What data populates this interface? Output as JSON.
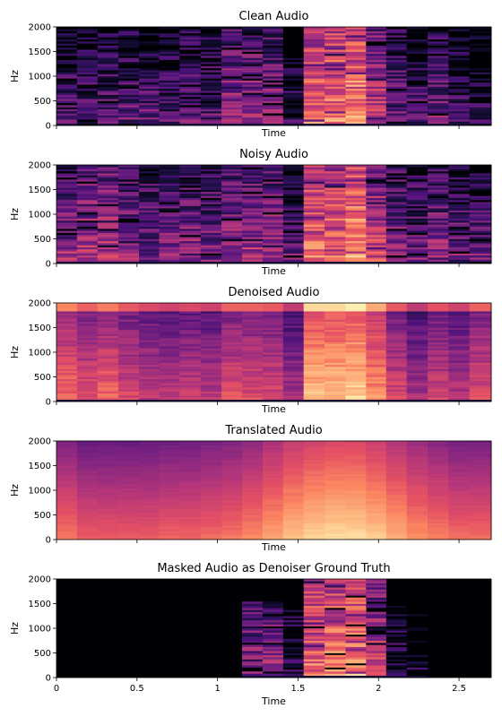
{
  "chart_data": [
    {
      "type": "heatmap",
      "title": "Clean Audio",
      "xlabel": "Time",
      "ylabel": "Hz",
      "xlim": [
        0,
        2.7
      ],
      "ylim": [
        0,
        2000
      ],
      "x_ticks": [
        0,
        0.5,
        1,
        1.5,
        2,
        2.5
      ],
      "x_tick_labels_shown": false,
      "y_ticks": [
        0,
        500,
        1000,
        1500,
        2000
      ],
      "time_frames": [
        0.065,
        0.19,
        0.32,
        0.45,
        0.575,
        0.7,
        0.83,
        0.96,
        1.09,
        1.215,
        1.345,
        1.47,
        1.6,
        1.73,
        1.86,
        1.985,
        2.11,
        2.24,
        2.37,
        2.5,
        2.63
      ],
      "frame_intensity": [
        0.3,
        0.26,
        0.3,
        0.32,
        0.3,
        0.28,
        0.33,
        0.3,
        0.45,
        0.45,
        0.42,
        0.2,
        0.72,
        0.75,
        0.8,
        0.55,
        0.38,
        0.28,
        0.35,
        0.25,
        0.18
      ],
      "colormap": "magma"
    },
    {
      "type": "heatmap",
      "title": "Noisy Audio",
      "xlabel": "Time",
      "ylabel": "Hz",
      "xlim": [
        0,
        2.7
      ],
      "ylim": [
        0,
        2000
      ],
      "x_ticks": [
        0,
        0.5,
        1,
        1.5,
        2,
        2.5
      ],
      "x_tick_labels_shown": false,
      "y_ticks": [
        0,
        500,
        1000,
        1500,
        2000
      ],
      "time_frames": [
        0.065,
        0.19,
        0.32,
        0.45,
        0.575,
        0.7,
        0.83,
        0.96,
        1.09,
        1.215,
        1.345,
        1.47,
        1.6,
        1.73,
        1.86,
        1.985,
        2.11,
        2.24,
        2.37,
        2.5,
        2.63
      ],
      "frame_intensity": [
        0.45,
        0.48,
        0.52,
        0.4,
        0.38,
        0.4,
        0.42,
        0.38,
        0.45,
        0.48,
        0.45,
        0.3,
        0.72,
        0.72,
        0.8,
        0.58,
        0.42,
        0.36,
        0.42,
        0.35,
        0.32
      ],
      "colormap": "magma"
    },
    {
      "type": "heatmap",
      "title": "Denoised Audio",
      "xlabel": "Time",
      "ylabel": "Hz",
      "xlim": [
        0,
        2.7
      ],
      "ylim": [
        0,
        2000
      ],
      "x_ticks": [
        0,
        0.5,
        1,
        1.5,
        2,
        2.5
      ],
      "x_tick_labels_shown": false,
      "y_ticks": [
        0,
        500,
        1000,
        1500,
        2000
      ],
      "time_frames": [
        0.065,
        0.19,
        0.32,
        0.45,
        0.575,
        0.7,
        0.83,
        0.96,
        1.09,
        1.215,
        1.345,
        1.47,
        1.6,
        1.73,
        1.86,
        1.985,
        2.11,
        2.24,
        2.37,
        2.5,
        2.63
      ],
      "frame_intensity": [
        0.7,
        0.62,
        0.68,
        0.6,
        0.55,
        0.52,
        0.55,
        0.52,
        0.62,
        0.62,
        0.6,
        0.48,
        0.88,
        0.88,
        0.92,
        0.78,
        0.6,
        0.48,
        0.58,
        0.52,
        0.62
      ],
      "colormap": "magma"
    },
    {
      "type": "heatmap",
      "title": "Translated Audio",
      "xlabel": "Time",
      "ylabel": "Hz",
      "xlim": [
        0,
        2.7
      ],
      "ylim": [
        0,
        2000
      ],
      "x_ticks": [
        0,
        0.5,
        1,
        1.5,
        2,
        2.5
      ],
      "x_tick_labels_shown": false,
      "y_ticks": [
        0,
        500,
        1000,
        1500,
        2000
      ],
      "time_frames": [
        0.065,
        0.19,
        0.32,
        0.45,
        0.575,
        0.7,
        0.83,
        0.96,
        1.09,
        1.215,
        1.345,
        1.47,
        1.6,
        1.73,
        1.86,
        1.985,
        2.11,
        2.24,
        2.37,
        2.5,
        2.63
      ],
      "frame_intensity": [
        0.72,
        0.66,
        0.66,
        0.66,
        0.66,
        0.68,
        0.68,
        0.7,
        0.72,
        0.76,
        0.82,
        0.88,
        0.92,
        0.94,
        0.94,
        0.9,
        0.84,
        0.78,
        0.74,
        0.7,
        0.7
      ],
      "colormap": "magma"
    },
    {
      "type": "heatmap",
      "title": "Masked Audio as Denoiser Ground Truth",
      "xlabel": "Time",
      "ylabel": "Hz",
      "xlim": [
        0,
        2.7
      ],
      "ylim": [
        0,
        2000
      ],
      "x_ticks": [
        0,
        0.5,
        1,
        1.5,
        2,
        2.5
      ],
      "x_tick_labels": [
        "0",
        "0.5",
        "1",
        "1.5",
        "2",
        "2.5"
      ],
      "x_tick_labels_shown": true,
      "y_ticks": [
        0,
        500,
        1000,
        1500,
        2000
      ],
      "time_frames": [
        0.065,
        0.19,
        0.32,
        0.45,
        0.575,
        0.7,
        0.83,
        0.96,
        1.09,
        1.215,
        1.345,
        1.47,
        1.6,
        1.73,
        1.86,
        1.985,
        2.11,
        2.24,
        2.37,
        2.5,
        2.63
      ],
      "frame_intensity": [
        0,
        0,
        0,
        0,
        0,
        0,
        0,
        0,
        0,
        0.4,
        0.42,
        0.22,
        0.72,
        0.75,
        0.8,
        0.55,
        0.2,
        0.1,
        0,
        0,
        0
      ],
      "masked": true,
      "colormap": "magma"
    }
  ]
}
